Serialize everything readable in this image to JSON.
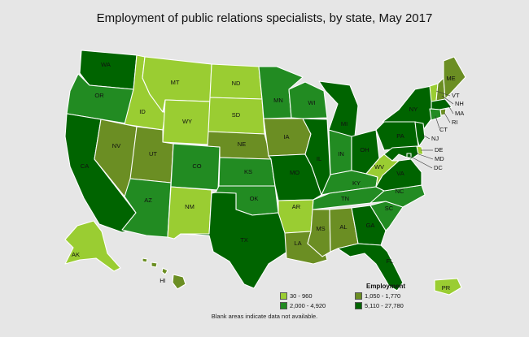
{
  "title": "Employment of public relations specialists, by state, May 2017",
  "note": "Blank areas indicate data not available.",
  "legend": {
    "title": "Employment",
    "items": [
      {
        "label": "30 - 960",
        "color": "#9acd32"
      },
      {
        "label": "1,050 - 1,770",
        "color": "#6b8e23"
      },
      {
        "label": "2,000 - 4,920",
        "color": "#228b22"
      },
      {
        "label": "5,110 - 27,780",
        "color": "#006400"
      }
    ]
  },
  "colors": [
    "#9acd32",
    "#6b8e23",
    "#228b22",
    "#006400"
  ],
  "states": [
    {
      "code": "WA",
      "cls": 3
    },
    {
      "code": "OR",
      "cls": 2
    },
    {
      "code": "CA",
      "cls": 3
    },
    {
      "code": "ID",
      "cls": 0
    },
    {
      "code": "NV",
      "cls": 1
    },
    {
      "code": "MT",
      "cls": 0
    },
    {
      "code": "WY",
      "cls": 0
    },
    {
      "code": "UT",
      "cls": 1
    },
    {
      "code": "AZ",
      "cls": 2
    },
    {
      "code": "CO",
      "cls": 2
    },
    {
      "code": "NM",
      "cls": 0
    },
    {
      "code": "ND",
      "cls": 0
    },
    {
      "code": "SD",
      "cls": 0
    },
    {
      "code": "NE",
      "cls": 1
    },
    {
      "code": "KS",
      "cls": 2
    },
    {
      "code": "OK",
      "cls": 2
    },
    {
      "code": "TX",
      "cls": 3
    },
    {
      "code": "MN",
      "cls": 2
    },
    {
      "code": "IA",
      "cls": 1
    },
    {
      "code": "MO",
      "cls": 3
    },
    {
      "code": "AR",
      "cls": 0
    },
    {
      "code": "LA",
      "cls": 1
    },
    {
      "code": "WI",
      "cls": 2
    },
    {
      "code": "IL",
      "cls": 3
    },
    {
      "code": "MI",
      "cls": 3
    },
    {
      "code": "IN",
      "cls": 2
    },
    {
      "code": "OH",
      "cls": 3
    },
    {
      "code": "KY",
      "cls": 2
    },
    {
      "code": "TN",
      "cls": 2
    },
    {
      "code": "MS",
      "cls": 1
    },
    {
      "code": "AL",
      "cls": 1
    },
    {
      "code": "GA",
      "cls": 3
    },
    {
      "code": "FL",
      "cls": 3
    },
    {
      "code": "SC",
      "cls": 2
    },
    {
      "code": "NC",
      "cls": 2
    },
    {
      "code": "VA",
      "cls": 3
    },
    {
      "code": "WV",
      "cls": 0
    },
    {
      "code": "PA",
      "cls": 3
    },
    {
      "code": "NY",
      "cls": 3
    },
    {
      "code": "ME",
      "cls": 1
    },
    {
      "code": "VT",
      "cls": 0
    },
    {
      "code": "NH",
      "cls": 1
    },
    {
      "code": "MA",
      "cls": 3
    },
    {
      "code": "RI",
      "cls": 1
    },
    {
      "code": "CT",
      "cls": 2
    },
    {
      "code": "NJ",
      "cls": 3
    },
    {
      "code": "DE",
      "cls": 0
    },
    {
      "code": "MD",
      "cls": 3
    },
    {
      "code": "DC",
      "cls": 3
    },
    {
      "code": "AK",
      "cls": 0
    },
    {
      "code": "HI",
      "cls": 1
    },
    {
      "code": "PR",
      "cls": 0
    }
  ]
}
